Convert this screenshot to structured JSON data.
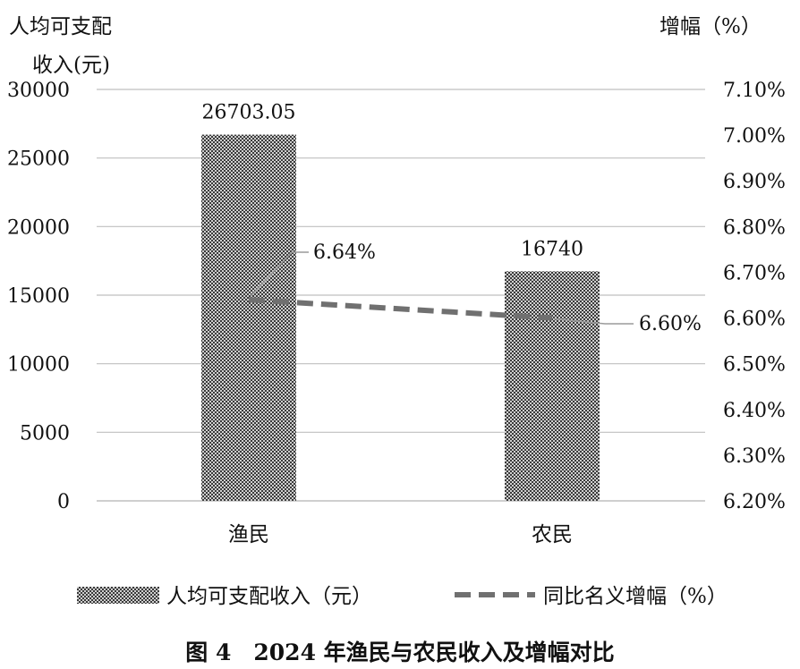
{
  "chart_data": {
    "type": "bar",
    "categories": [
      "渔民",
      "农民"
    ],
    "series": [
      {
        "name": "人均可支配收入（元）",
        "type": "bar",
        "axis": "left",
        "values": [
          26703.05,
          16740
        ],
        "value_labels": [
          "26703.05",
          "16740"
        ]
      },
      {
        "name": "同比名义增幅（%）",
        "type": "line",
        "axis": "right",
        "style": "dashed",
        "values": [
          6.64,
          6.6
        ],
        "value_labels": [
          "6.64%",
          "6.60%"
        ]
      }
    ],
    "ylabel_left_lines": [
      "人均可支配",
      "收入(元)"
    ],
    "ylabel_right": "增幅（%）",
    "ylim_left": [
      0,
      30000
    ],
    "yticks_left": [
      "30000",
      "25000",
      "20000",
      "15000",
      "10000",
      "5000",
      "0"
    ],
    "ylim_right": [
      6.2,
      7.1
    ],
    "yticks_right": [
      "7.10%",
      "7.00%",
      "6.90%",
      "6.80%",
      "6.70%",
      "6.60%",
      "6.50%",
      "6.40%",
      "6.30%",
      "6.20%"
    ],
    "grid": true,
    "legend_position": "bottom",
    "caption": "图 4　2024 年渔民与农民收入及增幅对比",
    "colors": {
      "bar_dark": "#3a3a3a",
      "bar_light": "#cfcfcf",
      "line": "#707070",
      "grid": "#bfbfbf"
    }
  }
}
